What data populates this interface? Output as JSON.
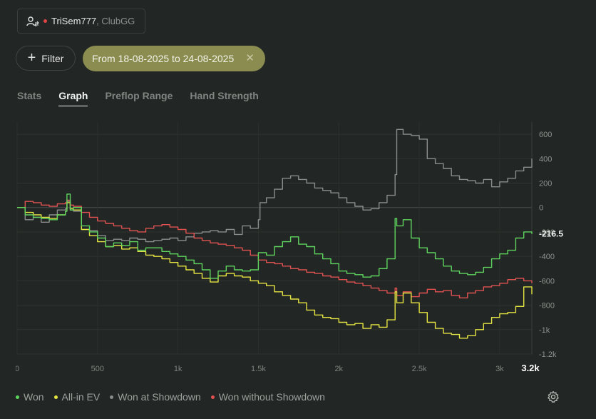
{
  "player": {
    "name": "TriSem777",
    "club": ", ClubGG",
    "icon": "user-swap-icon"
  },
  "toolbar": {
    "filter_label": "Filter",
    "date_range": "From 18-08-2025 to 24-08-2025"
  },
  "tabs": [
    {
      "label": "Stats",
      "active": false
    },
    {
      "label": "Graph",
      "active": true
    },
    {
      "label": "Preflop Range",
      "active": false
    },
    {
      "label": "Hand Strength",
      "active": false
    }
  ],
  "colors": {
    "won": "#5ed45e",
    "allin_ev": "#e5e442",
    "showdown": "#8a8d8b",
    "non_showdown": "#e05252",
    "accent": "#8b8c4f"
  },
  "chart_data": {
    "type": "line",
    "xlim": [
      0,
      3200
    ],
    "ylim": [
      -1200,
      700
    ],
    "x_ticks": [
      0,
      500,
      1000,
      1500,
      2000,
      2500,
      3000
    ],
    "x_tick_labels": [
      "0",
      "500",
      "1k",
      "1.5k",
      "2k",
      "2.5k",
      "3k"
    ],
    "x_end_label": "3.2k",
    "y_ticks": [
      600,
      400,
      200,
      0,
      -200,
      -400,
      -600,
      -800,
      -1000,
      -1200
    ],
    "y_tick_labels": [
      "600",
      "400",
      "200",
      "0",
      "-200",
      "-400",
      "-600",
      "-800",
      "-1k",
      "-1.2k"
    ],
    "end_value_label": "-216.5",
    "grid": true,
    "legend_position": "bottom-left",
    "series": [
      {
        "name": "Won",
        "color": "#5ed45e",
        "x": [
          0,
          50,
          100,
          150,
          200,
          250,
          300,
          310,
          330,
          350,
          400,
          450,
          500,
          550,
          600,
          650,
          700,
          750,
          800,
          850,
          900,
          950,
          1000,
          1050,
          1100,
          1150,
          1200,
          1250,
          1300,
          1350,
          1400,
          1450,
          1500,
          1550,
          1600,
          1650,
          1700,
          1750,
          1800,
          1850,
          1900,
          1950,
          2000,
          2050,
          2100,
          2150,
          2200,
          2250,
          2300,
          2350,
          2360,
          2400,
          2450,
          2500,
          2550,
          2600,
          2650,
          2700,
          2750,
          2800,
          2850,
          2900,
          2950,
          3000,
          3050,
          3100,
          3150,
          3200
        ],
        "y": [
          0,
          -60,
          -80,
          -90,
          -100,
          -60,
          -30,
          110,
          -20,
          0,
          -150,
          -200,
          -250,
          -320,
          -290,
          -310,
          -280,
          -350,
          -330,
          -330,
          -360,
          -380,
          -400,
          -430,
          -460,
          -510,
          -580,
          -520,
          -480,
          -510,
          -520,
          -510,
          -370,
          -390,
          -320,
          -280,
          -240,
          -300,
          -320,
          -380,
          -420,
          -460,
          -520,
          -540,
          -550,
          -570,
          -560,
          -500,
          -420,
          -90,
          -150,
          -100,
          -250,
          -330,
          -370,
          -420,
          -480,
          -520,
          -540,
          -550,
          -530,
          -490,
          -420,
          -380,
          -350,
          -250,
          -200,
          -216
        ]
      },
      {
        "name": "All-in EV",
        "color": "#e5e442",
        "x": [
          0,
          50,
          100,
          150,
          200,
          250,
          300,
          310,
          330,
          350,
          400,
          450,
          500,
          550,
          600,
          650,
          700,
          750,
          800,
          850,
          900,
          950,
          1000,
          1050,
          1100,
          1150,
          1200,
          1250,
          1300,
          1350,
          1400,
          1450,
          1500,
          1550,
          1600,
          1650,
          1700,
          1750,
          1800,
          1850,
          1900,
          1950,
          2000,
          2050,
          2100,
          2150,
          2200,
          2250,
          2300,
          2350,
          2360,
          2400,
          2450,
          2500,
          2550,
          2600,
          2650,
          2700,
          2750,
          2800,
          2850,
          2900,
          2950,
          3000,
          3050,
          3100,
          3150,
          3200
        ],
        "y": [
          0,
          -40,
          -60,
          -80,
          -90,
          -60,
          -30,
          40,
          -10,
          -20,
          -180,
          -230,
          -280,
          -320,
          -310,
          -340,
          -330,
          -360,
          -390,
          -400,
          -420,
          -450,
          -480,
          -510,
          -540,
          -580,
          -610,
          -560,
          -540,
          -560,
          -570,
          -600,
          -620,
          -640,
          -690,
          -720,
          -750,
          -780,
          -840,
          -880,
          -900,
          -910,
          -940,
          -960,
          -950,
          -990,
          -960,
          -980,
          -920,
          -690,
          -780,
          -700,
          -780,
          -860,
          -940,
          -990,
          -1030,
          -1040,
          -1070,
          -1050,
          -1000,
          -950,
          -900,
          -870,
          -860,
          -810,
          -650,
          -710
        ]
      },
      {
        "name": "Won at Showdown",
        "color": "#8a8d8b",
        "x": [
          0,
          50,
          100,
          150,
          200,
          250,
          300,
          310,
          330,
          350,
          400,
          450,
          500,
          550,
          600,
          650,
          700,
          750,
          800,
          850,
          900,
          950,
          1000,
          1050,
          1100,
          1150,
          1200,
          1250,
          1300,
          1350,
          1400,
          1450,
          1500,
          1510,
          1550,
          1600,
          1650,
          1700,
          1750,
          1800,
          1850,
          1900,
          1950,
          2000,
          2050,
          2100,
          2150,
          2200,
          2250,
          2300,
          2350,
          2360,
          2400,
          2450,
          2500,
          2550,
          2600,
          2650,
          2700,
          2750,
          2800,
          2850,
          2900,
          2950,
          3000,
          3050,
          3100,
          3150,
          3200
        ],
        "y": [
          0,
          -100,
          -80,
          -120,
          -60,
          -20,
          -10,
          50,
          -20,
          -30,
          -180,
          -190,
          -230,
          -270,
          -260,
          -270,
          -250,
          -260,
          -280,
          -270,
          -260,
          -250,
          -270,
          -240,
          -210,
          -200,
          -190,
          -200,
          -180,
          -220,
          -150,
          -170,
          -100,
          40,
          80,
          150,
          240,
          260,
          230,
          200,
          160,
          140,
          120,
          80,
          40,
          10,
          -20,
          -10,
          40,
          100,
          270,
          640,
          600,
          590,
          560,
          400,
          360,
          320,
          260,
          230,
          220,
          200,
          230,
          170,
          210,
          240,
          300,
          330,
          400
        ]
      },
      {
        "name": "Won without Showdown",
        "color": "#e05252",
        "x": [
          0,
          50,
          100,
          150,
          200,
          250,
          300,
          310,
          330,
          350,
          400,
          450,
          500,
          550,
          600,
          650,
          700,
          750,
          800,
          850,
          900,
          950,
          1000,
          1050,
          1100,
          1150,
          1200,
          1250,
          1300,
          1350,
          1400,
          1450,
          1500,
          1550,
          1600,
          1650,
          1700,
          1750,
          1800,
          1850,
          1900,
          1950,
          2000,
          2050,
          2100,
          2150,
          2200,
          2250,
          2300,
          2350,
          2360,
          2400,
          2450,
          2500,
          2550,
          2600,
          2650,
          2700,
          2750,
          2800,
          2850,
          2900,
          2950,
          3000,
          3050,
          3100,
          3150,
          3200
        ],
        "y": [
          0,
          50,
          40,
          20,
          10,
          30,
          40,
          60,
          20,
          10,
          -40,
          -80,
          -110,
          -130,
          -150,
          -170,
          -190,
          -200,
          -170,
          -150,
          -140,
          -160,
          -180,
          -210,
          -250,
          -270,
          -290,
          -300,
          -310,
          -330,
          -350,
          -390,
          -430,
          -450,
          -460,
          -480,
          -500,
          -510,
          -530,
          -540,
          -560,
          -570,
          -590,
          -610,
          -620,
          -640,
          -660,
          -680,
          -700,
          -660,
          -720,
          -690,
          -730,
          -700,
          -670,
          -690,
          -680,
          -720,
          -740,
          -700,
          -680,
          -650,
          -640,
          -620,
          -590,
          -580,
          -600,
          -620
        ]
      }
    ]
  }
}
